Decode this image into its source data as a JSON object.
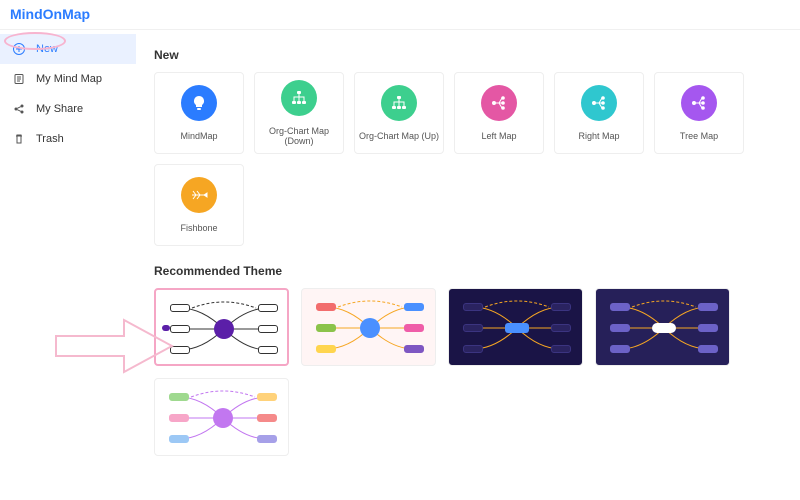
{
  "app": {
    "logo_m": "M",
    "logo_rest": "indOnMap"
  },
  "sidebar": {
    "items": [
      {
        "label": "New",
        "icon": "plus"
      },
      {
        "label": "My Mind Map",
        "icon": "doc"
      },
      {
        "label": "My Share",
        "icon": "share"
      },
      {
        "label": "Trash",
        "icon": "trash"
      }
    ]
  },
  "sections": {
    "new_title": "New",
    "themes_title": "Recommended Theme"
  },
  "templates": [
    {
      "label": "MindMap",
      "color": "#2b7cff",
      "icon": "bulb"
    },
    {
      "label": "Org-Chart Map (Down)",
      "color": "#3dcf8e",
      "icon": "org"
    },
    {
      "label": "Org-Chart Map (Up)",
      "color": "#3dcf8e",
      "icon": "org"
    },
    {
      "label": "Left Map",
      "color": "#e457a4",
      "icon": "branch"
    },
    {
      "label": "Right Map",
      "color": "#2fc7cf",
      "icon": "branch"
    },
    {
      "label": "Tree Map",
      "color": "#a557ef",
      "icon": "branch"
    },
    {
      "label": "Fishbone",
      "color": "#f6a623",
      "icon": "fish"
    }
  ],
  "themes": [
    {
      "bg": "#ffffff",
      "center": "#5b1fa8",
      "node_fill": "#ffffff",
      "node_border": "#333333",
      "line": "#333333",
      "selected": true
    },
    {
      "bg": "#fff5f5",
      "center": "#4a90ff",
      "colors": [
        "#f26d6d",
        "#8bc34a",
        "#ffd54f",
        "#4a90ff",
        "#ef5da8",
        "#7e57c2"
      ],
      "line": "#f6a623"
    },
    {
      "bg": "#1a1446",
      "center": "#4a90ff",
      "node_fill": "#2a2360",
      "node_border": "#3b3480",
      "line": "#f6a623"
    },
    {
      "bg": "#262059",
      "center": "#ffffff",
      "node_fill": "#6c62c7",
      "node_border": "#6c62c7",
      "line": "#f6a623"
    },
    {
      "bg": "#ffffff",
      "center": "#c277f0",
      "colors": [
        "#9fd98f",
        "#f7a6c8",
        "#9cc8f5",
        "#ffd27a",
        "#f58a8a",
        "#a6a0e8"
      ],
      "line": "#c277f0"
    }
  ]
}
